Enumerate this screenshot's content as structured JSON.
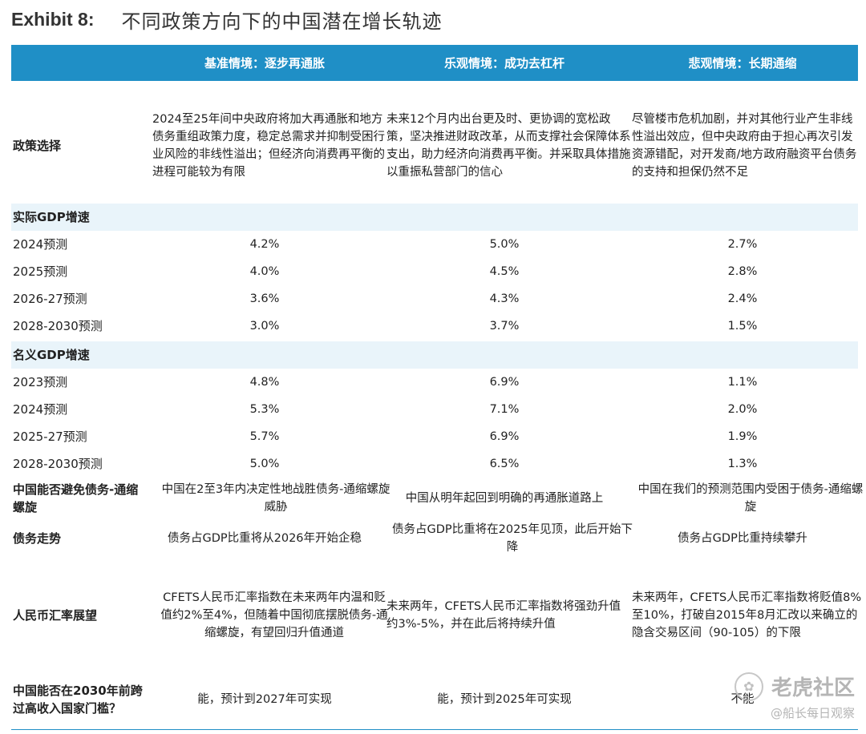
{
  "exhibit": "Exhibit 8:",
  "title": "不同政策方向下的中国潜在增长轨迹",
  "headers": {
    "baseline": "基准情境：逐步再通胀",
    "optimistic": "乐观情境：成功去杠杆",
    "pessimistic": "悲观情境：长期通缩"
  },
  "policy": {
    "label": "政策选择",
    "baseline": "2024至25年间中央政府将加大再通胀和地方债务重组政策力度，稳定总需求并抑制受困行业风险的非线性溢出；但经济向消费再平衡的进程可能较为有限",
    "optimistic": "未来12个月内出台更及时、更协调的宽松政策，坚决推进财政改革，从而支撑社会保障体系支出，助力经济向消费再平衡。并采取具体措施以重振私营部门的信心",
    "pessimistic": "尽管楼市危机加剧，并对其他行业产生非线性溢出效应，但中央政府由于担心再次引发资源错配，对开发商/地方政府融资平台债务的支持和担保仍然不足"
  },
  "real_gdp": {
    "label": "实际GDP增速",
    "rows": [
      {
        "period": "2024预测",
        "baseline": "4.2%",
        "optimistic": "5.0%",
        "pessimistic": "2.7%"
      },
      {
        "period": "2025预测",
        "baseline": "4.0%",
        "optimistic": "4.5%",
        "pessimistic": "2.8%"
      },
      {
        "period": "2026-27预测",
        "baseline": "3.6%",
        "optimistic": "4.3%",
        "pessimistic": "2.4%"
      },
      {
        "period": "2028-2030预测",
        "baseline": "3.0%",
        "optimistic": "3.7%",
        "pessimistic": "1.5%"
      }
    ]
  },
  "nominal_gdp": {
    "label": "名义GDP增速",
    "rows": [
      {
        "period": "2023预测",
        "baseline": "4.8%",
        "optimistic": "6.9%",
        "pessimistic": "1.1%"
      },
      {
        "period": "2024预测",
        "baseline": "5.3%",
        "optimistic": "7.1%",
        "pessimistic": "2.0%"
      },
      {
        "period": "2025-27预测",
        "baseline": "5.7%",
        "optimistic": "6.9%",
        "pessimistic": "1.9%"
      },
      {
        "period": "2028-2030预测",
        "baseline": "5.0%",
        "optimistic": "6.5%",
        "pessimistic": "1.3%"
      }
    ]
  },
  "debt_deflation": {
    "label": "中国能否避免债务-通缩螺旋",
    "baseline": "中国在2至3年内决定性地战胜债务-通缩螺旋威胁",
    "optimistic": "中国从明年起回到明确的再通胀道路上",
    "pessimistic": "中国在我们的预测范围内受困于债务-通缩螺旋"
  },
  "debt_trend": {
    "label": "债务走势",
    "baseline": "债务占GDP比重将从2026年开始企稳",
    "optimistic": "债务占GDP比重将在2025年见顶，此后开始下降",
    "pessimistic": "债务占GDP比重持续攀升"
  },
  "rmb": {
    "label": "人民币汇率展望",
    "baseline": "CFETS人民币汇率指数在未来两年内温和贬值约2%至4%，但随着中国彻底摆脱债务-通缩螺旋，有望回归升值通道",
    "optimistic": "未来两年，CFETS人民币汇率指数将强劲升值约3%-5%，并在此后将持续升值",
    "pessimistic": "未来两年，CFETS人民币汇率指数将贬值8%至10%，打破自2015年8月汇改以来确立的隐含交易区间（90-105）的下限"
  },
  "high_income": {
    "label": "中国能否在2030年前跨过高收入国家门槛？",
    "baseline": "能，预计到2027年可实现",
    "optimistic": "能，预计到2025年可实现",
    "pessimistic": "不能"
  },
  "watermark": {
    "brand": "老虎社区",
    "account": "@船长每日观察",
    "icon": "tiger-logo-icon"
  }
}
